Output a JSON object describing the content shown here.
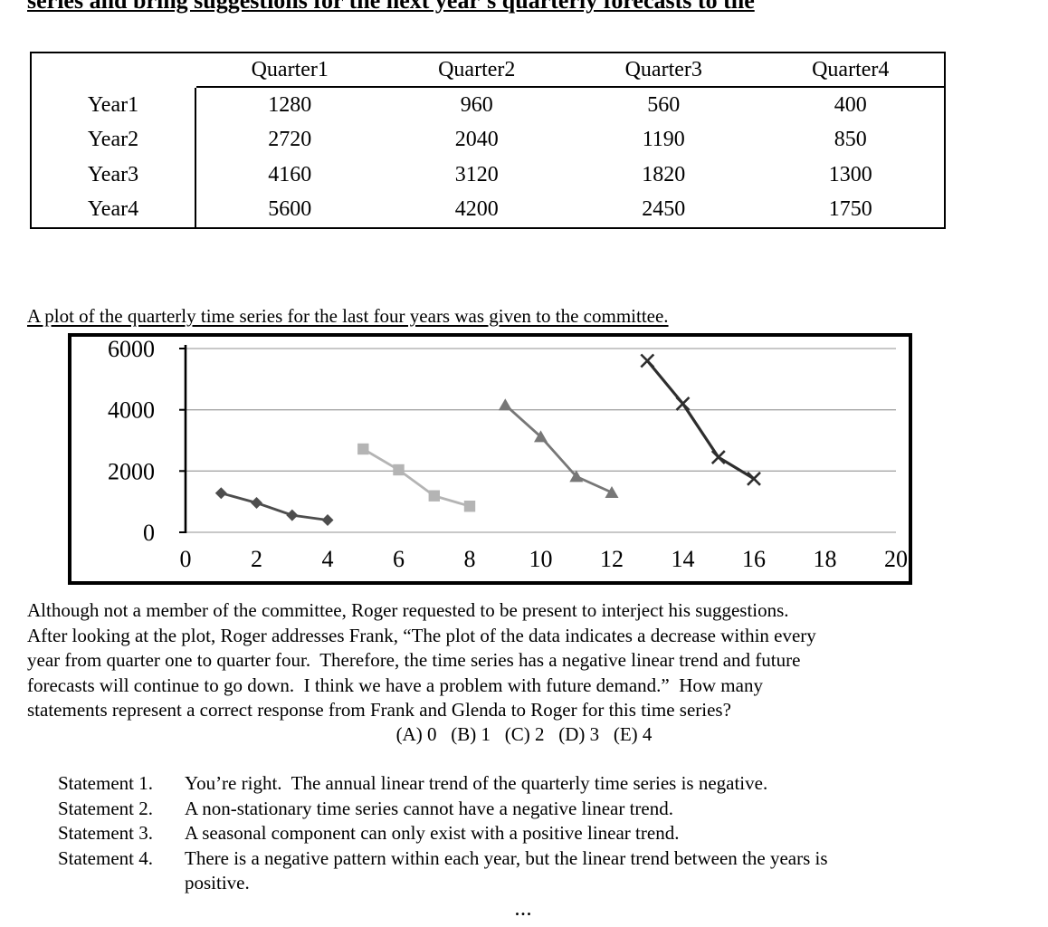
{
  "page": {
    "top_clipped_text": "series and bring suggestions for the next year’s quarterly forecasts to the",
    "plot_caption": "A plot of the quarterly time series for the last four years was given to the committee.",
    "ellipsis": "..."
  },
  "table": {
    "corner_label": "",
    "col_headers": [
      "Quarter1",
      "Quarter2",
      "Quarter3",
      "Quarter4"
    ],
    "rows": [
      {
        "label": "Year1",
        "values": [
          "1280",
          "960",
          "560",
          "400"
        ]
      },
      {
        "label": "Year2",
        "values": [
          "2720",
          "2040",
          "1190",
          "850"
        ]
      },
      {
        "label": "Year3",
        "values": [
          "4160",
          "3120",
          "1820",
          "1300"
        ]
      },
      {
        "label": "Year4",
        "values": [
          "5600",
          "4200",
          "2450",
          "1750"
        ]
      }
    ]
  },
  "question": {
    "paragraph_lines": [
      "Although not a member of the committee, Roger requested to be present to interject his suggestions.",
      "After looking at the plot, Roger addresses Frank, “The plot of the data indicates a decrease within every",
      "year from quarter one to quarter four.  Therefore, the time series has a negative linear trend and future",
      "forecasts will continue to go down.  I think we have a problem with future demand.”  How many",
      "statements represent a correct response from Frank and Glenda to Roger for this time series?"
    ],
    "answer_choices": "(A) 0   (B) 1   (C) 2   (D) 3   (E) 4",
    "statements": [
      {
        "label": "Statement 1.",
        "line1": "You’re right.  The annual linear trend of the quarterly time series is negative.",
        "line2": ""
      },
      {
        "label": "Statement 2.",
        "line1": "A non-stationary time series cannot have a negative linear trend.",
        "line2": ""
      },
      {
        "label": "Statement 3.",
        "line1": "A seasonal component can only exist with a positive linear trend.",
        "line2": ""
      },
      {
        "label": "Statement 4.",
        "line1": "There is a negative pattern within each year, but the linear trend between the years is",
        "line2": "positive."
      }
    ]
  },
  "chart_data": {
    "type": "line",
    "title": "",
    "xlabel": "",
    "ylabel": "",
    "xlim": [
      0,
      20
    ],
    "ylim": [
      0,
      6000
    ],
    "x_ticks": [
      0,
      2,
      4,
      6,
      8,
      10,
      12,
      14,
      16,
      18,
      20
    ],
    "y_ticks": [
      6000,
      4000,
      2000,
      0
    ],
    "grid": true,
    "legend": "none",
    "series": [
      {
        "name": "Year1",
        "marker": "diamond",
        "color": "#4d4d4d",
        "line_width": 2.8,
        "x": [
          1,
          2,
          3,
          4
        ],
        "y": [
          1280,
          960,
          560,
          400
        ]
      },
      {
        "name": "Year2",
        "marker": "square",
        "color": "#b4b4b4",
        "line_width": 2.8,
        "x": [
          5,
          6,
          7,
          8
        ],
        "y": [
          2720,
          2040,
          1190,
          850
        ]
      },
      {
        "name": "Year3",
        "marker": "triangle",
        "color": "#777777",
        "line_width": 2.8,
        "x": [
          9,
          10,
          11,
          12
        ],
        "y": [
          4160,
          3120,
          1820,
          1300
        ]
      },
      {
        "name": "Year4",
        "marker": "x",
        "color": "#2e2e2e",
        "line_width": 3.2,
        "x": [
          13,
          14,
          15,
          16
        ],
        "y": [
          5600,
          4200,
          2450,
          1750
        ]
      }
    ]
  }
}
